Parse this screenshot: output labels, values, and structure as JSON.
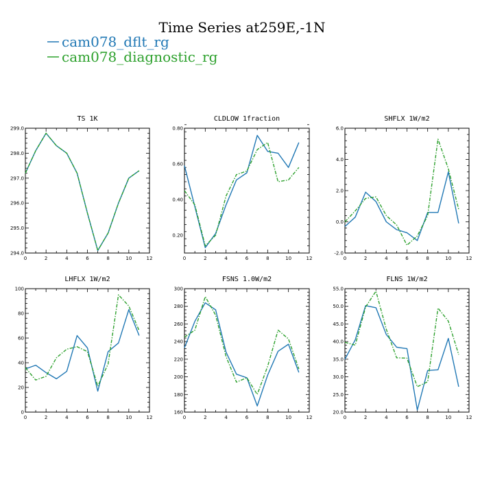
{
  "header": {
    "title": "Time Series at259E,-1N"
  },
  "legend": {
    "entries": [
      {
        "label": "cam078_dflt_rg",
        "color": "#1f77b4"
      },
      {
        "label": "cam078_diagnostic_rg",
        "color": "#2ca02c"
      }
    ],
    "placement": "top-left"
  },
  "chart_data": [
    {
      "type": "line",
      "title": "TS   1K",
      "xlim": [
        0,
        12
      ],
      "ylim": [
        294.0,
        299.0
      ],
      "xticks": [
        0,
        2,
        4,
        6,
        8,
        10,
        12
      ],
      "yticks": [
        294.0,
        295.0,
        296.0,
        297.0,
        298.0,
        299.0
      ],
      "ytick_labels": [
        "294.0",
        "295.0",
        "296.0",
        "297.0",
        "298.0",
        "299.0"
      ],
      "x": [
        0,
        1,
        2,
        3,
        4,
        5,
        6,
        7,
        8,
        9,
        10,
        11
      ],
      "series": [
        {
          "name": "cam078_dflt_rg",
          "color": "#1f77b4",
          "dash": "solid",
          "values": [
            297.2,
            298.1,
            298.8,
            298.3,
            298.0,
            297.2,
            295.6,
            294.1,
            294.8,
            296.0,
            297.0,
            297.3
          ]
        },
        {
          "name": "cam078_diagnostic_rg",
          "color": "#2ca02c",
          "dash": "dashed",
          "values": [
            297.2,
            298.1,
            298.8,
            298.3,
            298.0,
            297.2,
            295.6,
            294.1,
            294.8,
            296.0,
            297.0,
            297.3
          ]
        }
      ]
    },
    {
      "type": "line",
      "title": "CLDLOW   1fraction",
      "xlim": [
        0,
        12
      ],
      "ylim": [
        0.1,
        0.8
      ],
      "xticks": [
        0,
        2,
        4,
        6,
        8,
        10,
        12
      ],
      "yticks": [
        0.2,
        0.4,
        0.6,
        0.8
      ],
      "ytick_labels": [
        "0.20",
        "0.40",
        "0.60",
        "0.80"
      ],
      "x": [
        0,
        1,
        2,
        3,
        4,
        5,
        6,
        7,
        8,
        9,
        10,
        11
      ],
      "series": [
        {
          "name": "cam078_dflt_rg",
          "color": "#1f77b4",
          "dash": "solid",
          "values": [
            0.59,
            0.36,
            0.13,
            0.21,
            0.37,
            0.51,
            0.55,
            0.76,
            0.67,
            0.66,
            0.58,
            0.72
          ]
        },
        {
          "name": "cam078_diagnostic_rg",
          "color": "#2ca02c",
          "dash": "dashed",
          "values": [
            0.45,
            0.37,
            0.14,
            0.2,
            0.42,
            0.54,
            0.56,
            0.68,
            0.72,
            0.5,
            0.51,
            0.58
          ]
        }
      ]
    },
    {
      "type": "line",
      "title": "SHFLX   1W/m2",
      "xlim": [
        0,
        12
      ],
      "ylim": [
        -2.0,
        6.0
      ],
      "xticks": [
        0,
        2,
        4,
        6,
        8,
        10,
        12
      ],
      "yticks": [
        -2.0,
        0.0,
        2.0,
        4.0,
        6.0
      ],
      "ytick_labels": [
        "-2.0",
        "0.0",
        "2.0",
        "4.0",
        "6.0"
      ],
      "x": [
        0,
        1,
        2,
        3,
        4,
        5,
        6,
        7,
        8,
        9,
        10,
        11
      ],
      "series": [
        {
          "name": "cam078_dflt_rg",
          "color": "#1f77b4",
          "dash": "solid",
          "values": [
            -0.3,
            0.3,
            1.9,
            1.3,
            0.0,
            -0.5,
            -0.7,
            -1.2,
            0.6,
            0.6,
            3.2,
            -0.1
          ]
        },
        {
          "name": "cam078_diagnostic_rg",
          "color": "#2ca02c",
          "dash": "dashed",
          "values": [
            0.0,
            0.7,
            1.5,
            1.6,
            0.4,
            -0.2,
            -1.5,
            -0.9,
            0.4,
            5.3,
            3.4,
            0.8
          ]
        }
      ]
    },
    {
      "type": "line",
      "title": "LHFLX   1W/m2",
      "xlim": [
        0,
        12
      ],
      "ylim": [
        0,
        100
      ],
      "xticks": [
        0,
        2,
        4,
        6,
        8,
        10,
        12
      ],
      "yticks": [
        0,
        20,
        40,
        60,
        80,
        100
      ],
      "ytick_labels": [
        "0",
        "20",
        "40",
        "60",
        "80",
        "100"
      ],
      "x": [
        0,
        1,
        2,
        3,
        4,
        5,
        6,
        7,
        8,
        9,
        10,
        11
      ],
      "series": [
        {
          "name": "cam078_dflt_rg",
          "color": "#1f77b4",
          "dash": "solid",
          "values": [
            35,
            38,
            32,
            27,
            33,
            62,
            52,
            17,
            49,
            56,
            83,
            62
          ]
        },
        {
          "name": "cam078_diagnostic_rg",
          "color": "#2ca02c",
          "dash": "dashed",
          "values": [
            36,
            26,
            29,
            44,
            51,
            53,
            49,
            21,
            39,
            95,
            86,
            66
          ]
        }
      ]
    },
    {
      "type": "line",
      "title": "FSNS   1.0W/m2",
      "xlim": [
        0,
        12
      ],
      "ylim": [
        160,
        300
      ],
      "xticks": [
        0,
        2,
        4,
        6,
        8,
        10,
        12
      ],
      "yticks": [
        160,
        180,
        200,
        220,
        240,
        260,
        280,
        300
      ],
      "ytick_labels": [
        "160",
        "180",
        "200",
        "220",
        "240",
        "260",
        "280",
        "300"
      ],
      "x": [
        0,
        1,
        2,
        3,
        4,
        5,
        6,
        7,
        8,
        9,
        10,
        11
      ],
      "series": [
        {
          "name": "cam078_dflt_rg",
          "color": "#1f77b4",
          "dash": "solid",
          "values": [
            233,
            263,
            284,
            276,
            228,
            203,
            199,
            167,
            202,
            229,
            237,
            205
          ]
        },
        {
          "name": "cam078_diagnostic_rg",
          "color": "#2ca02c",
          "dash": "dashed",
          "values": [
            245,
            253,
            291,
            270,
            223,
            194,
            199,
            180,
            212,
            253,
            243,
            209
          ]
        }
      ]
    },
    {
      "type": "line",
      "title": "FLNS   1W/m2",
      "xlim": [
        0,
        12
      ],
      "ylim": [
        20.0,
        55.0
      ],
      "xticks": [
        0,
        2,
        4,
        6,
        8,
        10,
        12
      ],
      "yticks": [
        20.0,
        25.0,
        30.0,
        35.0,
        40.0,
        45.0,
        50.0,
        55.0
      ],
      "ytick_labels": [
        "20.0",
        "25.0",
        "30.0",
        "35.0",
        "40.0",
        "45.0",
        "50.0",
        "55.0"
      ],
      "x": [
        0,
        1,
        2,
        3,
        4,
        5,
        6,
        7,
        8,
        9,
        10,
        11
      ],
      "series": [
        {
          "name": "cam078_dflt_rg",
          "color": "#1f77b4",
          "dash": "solid",
          "values": [
            35.0,
            40.5,
            50.2,
            49.6,
            42.0,
            38.4,
            38.0,
            20.6,
            31.8,
            32.0,
            40.9,
            27.2
          ]
        },
        {
          "name": "cam078_diagnostic_rg",
          "color": "#2ca02c",
          "dash": "dashed",
          "values": [
            39.8,
            39.0,
            49.8,
            54.3,
            43.5,
            35.4,
            35.3,
            27.2,
            28.6,
            49.5,
            45.8,
            36.3
          ]
        }
      ]
    }
  ]
}
